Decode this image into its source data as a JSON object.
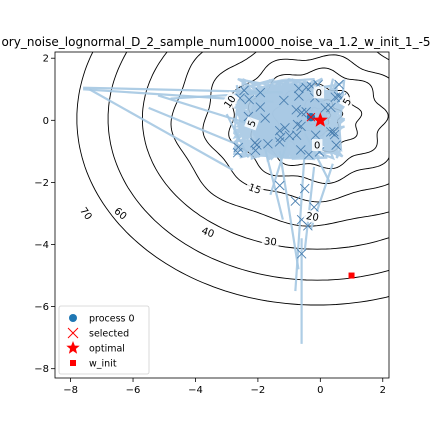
{
  "chart_data": {
    "type": "scatter",
    "title": "ory_noise_lognormal_D_2_sample_num10000_noise_va_1.2_w_init_1_-5",
    "xlim": [
      -8.5,
      2.2
    ],
    "ylim": [
      -8.3,
      2.2
    ],
    "x_ticks": [
      -8,
      -6,
      -4,
      -2,
      0,
      2
    ],
    "y_ticks": [
      2,
      0,
      -2,
      -4,
      -6,
      -8
    ],
    "contour_levels": [
      5,
      10,
      15,
      20,
      30,
      40,
      60,
      70
    ],
    "contour_labels": [
      {
        "text": "5",
        "x": -2.2,
        "y": -0.1,
        "rot": -70
      },
      {
        "text": "10",
        "x": -2.9,
        "y": 0.6,
        "rot": -55
      },
      {
        "text": "15",
        "x": -2.1,
        "y": -2.2,
        "rot": 20
      },
      {
        "text": "20",
        "x": -0.25,
        "y": -3.1,
        "rot": 10
      },
      {
        "text": "30",
        "x": -1.6,
        "y": -3.9,
        "rot": 5
      },
      {
        "text": "40",
        "x": -3.6,
        "y": -3.6,
        "rot": 20
      },
      {
        "text": "60",
        "x": -6.4,
        "y": -3.0,
        "rot": 40
      },
      {
        "text": "70",
        "x": -7.5,
        "y": -3.0,
        "rot": 55
      },
      {
        "text": "0",
        "x": -0.05,
        "y": 0.9,
        "rot": 0
      },
      {
        "text": "0",
        "x": -0.1,
        "y": -0.8,
        "rot": 0
      },
      {
        "text": "5",
        "x": 0.85,
        "y": 0.6,
        "rot": -60
      }
    ],
    "optimal": {
      "x": 0,
      "y": 0
    },
    "w_init": {
      "x": 1,
      "y": -5
    },
    "process0_final": {
      "x": -0.3,
      "y": 0.1
    },
    "legend": {
      "placement": "lower-left",
      "entries": [
        {
          "label": "process 0",
          "marker": "circle",
          "color": "#1f77b4"
        },
        {
          "label": "selected",
          "marker": "x",
          "color": "#ff0000"
        },
        {
          "label": "optimal",
          "marker": "star",
          "color": "#ff0000"
        },
        {
          "label": "w_init",
          "marker": "square",
          "color": "#ff0000"
        }
      ]
    },
    "colors": {
      "trajectory": "#a6c8e3",
      "dense_region": "#b5d0e7",
      "selected_marker": "#4a7fb0",
      "contour": "#000000",
      "red": "#ff0000",
      "blue": "#1f77b4"
    }
  }
}
